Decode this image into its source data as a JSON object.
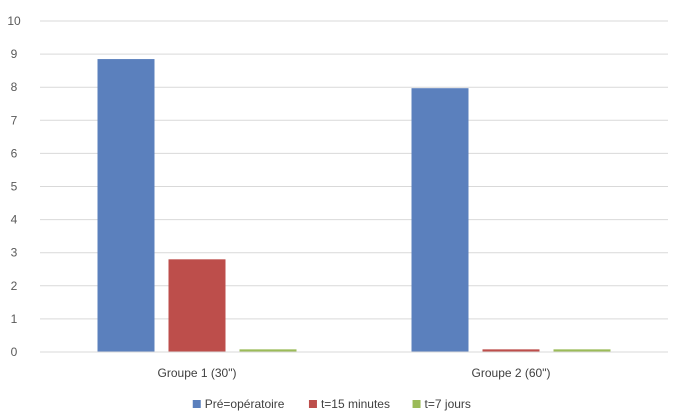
{
  "chart_data": {
    "type": "bar",
    "title": "",
    "xlabel": "",
    "ylabel": "",
    "ylim": [
      0,
      10
    ],
    "yticks": [
      0,
      1,
      2,
      3,
      4,
      5,
      6,
      7,
      8,
      9,
      10
    ],
    "grid": true,
    "legend_position": "bottom",
    "categories": [
      "Groupe 1 (30\")",
      "Groupe 2 (60\")"
    ],
    "series": [
      {
        "name": "Pré=opératoire",
        "color": "#5b80bd",
        "values": [
          8.85,
          7.97
        ]
      },
      {
        "name": "t=15 minutes",
        "color": "#bd4e4b",
        "values": [
          2.8,
          0.08
        ]
      },
      {
        "name": "t=7 jours",
        "color": "#9bbb59",
        "values": [
          0.08,
          0.08
        ]
      }
    ]
  }
}
